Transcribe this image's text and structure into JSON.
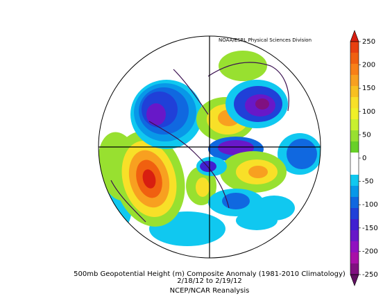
{
  "header": {
    "credit": "NOAA/ESRL Physical Sciences Division"
  },
  "colorbar": {
    "ticks": [
      250,
      200,
      150,
      100,
      50,
      0,
      -50,
      -100,
      -150,
      -200,
      -250
    ],
    "colors": [
      "#d81e10",
      "#e84010",
      "#f06010",
      "#f88018",
      "#f8a020",
      "#f8c020",
      "#f8e028",
      "#f0f028",
      "#c8f030",
      "#98e030",
      "#68d028",
      "#ffffff",
      "#ffffff",
      "#10c8f0",
      "#0898e8",
      "#1068e0",
      "#2040d8",
      "#4020d0",
      "#6818c8",
      "#9010c0",
      "#a810a8",
      "#801080",
      "#601060"
    ]
  },
  "footer": {
    "title": "500mb Geopotential Height (m) Composite Anomaly (1981-2010 Climatology)",
    "dates": "2/18/12  to 2/19/12",
    "source": "NCEP/NCAR Reanalysis"
  }
}
